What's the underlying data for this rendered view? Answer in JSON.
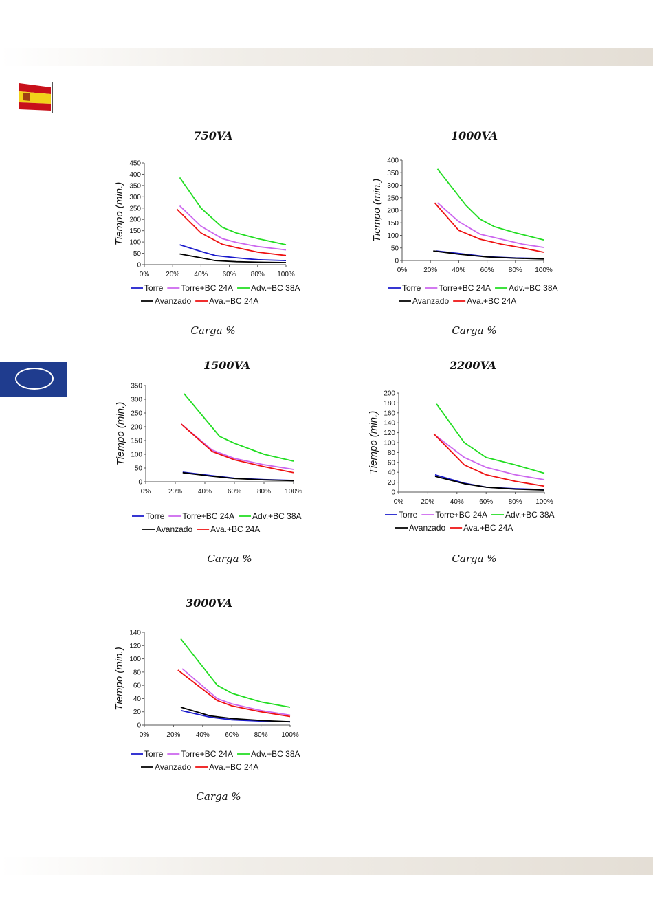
{
  "colors": {
    "Torre": "#1a1acc",
    "Torre+BC 24A": "#cc66ee",
    "Adv.+BC 38A": "#22dd22",
    "Avanzado": "#000000",
    "Ava.+BC 24A": "#ee1111"
  },
  "xlabel": "Carga %",
  "ylabel": "Tiempo (min.)",
  "chart_data": [
    {
      "type": "line",
      "title": "750VA",
      "xlabel": "Carga %",
      "ylabel": "Tiempo (min.)",
      "x_ticks": [
        "0%",
        "20%",
        "40%",
        "60%",
        "80%",
        "100%"
      ],
      "xlim": [
        0,
        100
      ],
      "ylim": [
        0,
        450
      ],
      "y_ticks": [
        0,
        50,
        100,
        150,
        200,
        250,
        300,
        350,
        400,
        450
      ],
      "series": [
        {
          "name": "Torre",
          "x": [
            25,
            40,
            50,
            65,
            80,
            100
          ],
          "values": [
            88,
            58,
            40,
            30,
            22,
            18
          ]
        },
        {
          "name": "Torre+BC 24A",
          "x": [
            25,
            40,
            55,
            65,
            80,
            100
          ],
          "values": [
            260,
            170,
            115,
            98,
            80,
            65
          ]
        },
        {
          "name": "Adv.+BC 38A",
          "x": [
            25,
            40,
            55,
            65,
            80,
            100
          ],
          "values": [
            385,
            250,
            165,
            140,
            115,
            88
          ]
        },
        {
          "name": "Avanzado",
          "x": [
            25,
            40,
            50,
            65,
            80,
            100
          ],
          "values": [
            47,
            30,
            18,
            13,
            11,
            9
          ]
        },
        {
          "name": "Ava.+BC 24A",
          "x": [
            23,
            40,
            55,
            65,
            80,
            100
          ],
          "values": [
            245,
            140,
            90,
            75,
            55,
            40
          ]
        }
      ]
    },
    {
      "type": "line",
      "title": "1000VA",
      "xlabel": "Carga %",
      "ylabel": "Tiempo (min.)",
      "x_ticks": [
        "0%",
        "20%",
        "40%",
        "60%",
        "80%",
        "100%"
      ],
      "xlim": [
        0,
        100
      ],
      "ylim": [
        0,
        400
      ],
      "y_ticks": [
        0,
        50,
        100,
        150,
        200,
        250,
        300,
        350,
        400
      ],
      "series": [
        {
          "name": "Torre",
          "x": [
            24,
            40,
            60,
            80,
            100
          ],
          "values": [
            38,
            28,
            15,
            10,
            8
          ]
        },
        {
          "name": "Torre+BC 24A",
          "x": [
            25,
            40,
            55,
            70,
            85,
            100
          ],
          "values": [
            230,
            155,
            105,
            85,
            65,
            52
          ]
        },
        {
          "name": "Adv.+BC 38A",
          "x": [
            25,
            45,
            55,
            65,
            80,
            100
          ],
          "values": [
            365,
            220,
            165,
            135,
            110,
            82
          ]
        },
        {
          "name": "Avanzado",
          "x": [
            22,
            40,
            60,
            80,
            100
          ],
          "values": [
            38,
            25,
            14,
            9,
            6
          ]
        },
        {
          "name": "Ava.+BC 24A",
          "x": [
            23,
            40,
            55,
            70,
            85,
            100
          ],
          "values": [
            230,
            120,
            85,
            65,
            50,
            33
          ]
        }
      ]
    },
    {
      "type": "line",
      "title": "1500VA",
      "xlabel": "Carga %",
      "ylabel": "Tiempo (min.)",
      "x_ticks": [
        "0%",
        "20%",
        "40%",
        "60%",
        "80%",
        "100%"
      ],
      "xlim": [
        0,
        100
      ],
      "ylim": [
        0,
        350
      ],
      "y_ticks": [
        0,
        50,
        100,
        150,
        200,
        250,
        300,
        350
      ],
      "series": [
        {
          "name": "Torre",
          "x": [
            25,
            45,
            60,
            80,
            100
          ],
          "values": [
            35,
            22,
            13,
            8,
            5
          ]
        },
        {
          "name": "Torre+BC 24A",
          "x": [
            24,
            45,
            60,
            80,
            100
          ],
          "values": [
            210,
            115,
            85,
            62,
            45
          ]
        },
        {
          "name": "Adv.+BC 38A",
          "x": [
            26,
            50,
            60,
            80,
            100
          ],
          "values": [
            320,
            165,
            140,
            100,
            75
          ]
        },
        {
          "name": "Avanzado",
          "x": [
            25,
            45,
            60,
            80,
            100
          ],
          "values": [
            33,
            20,
            12,
            7,
            4
          ]
        },
        {
          "name": "Ava.+BC 24A",
          "x": [
            24,
            45,
            60,
            80,
            100
          ],
          "values": [
            210,
            110,
            80,
            55,
            33
          ]
        }
      ]
    },
    {
      "type": "line",
      "title": "2200VA",
      "xlabel": "Carga %",
      "ylabel": "Tiempo (min.)",
      "x_ticks": [
        "0%",
        "20%",
        "40%",
        "60%",
        "80%",
        "100%"
      ],
      "xlim": [
        0,
        100
      ],
      "ylim": [
        0,
        200
      ],
      "y_ticks": [
        0,
        20,
        40,
        60,
        80,
        100,
        120,
        140,
        160,
        180,
        200
      ],
      "series": [
        {
          "name": "Torre",
          "x": [
            25,
            45,
            60,
            80,
            100
          ],
          "values": [
            35,
            18,
            10,
            7,
            5
          ]
        },
        {
          "name": "Torre+BC 24A",
          "x": [
            25,
            45,
            60,
            80,
            100
          ],
          "values": [
            115,
            70,
            50,
            35,
            25
          ]
        },
        {
          "name": "Adv.+BC 38A",
          "x": [
            26,
            45,
            60,
            80,
            100
          ],
          "values": [
            178,
            100,
            70,
            55,
            38
          ]
        },
        {
          "name": "Avanzado",
          "x": [
            25,
            45,
            60,
            80,
            100
          ],
          "values": [
            32,
            17,
            10,
            6,
            4
          ]
        },
        {
          "name": "Ava.+BC 24A",
          "x": [
            24,
            45,
            60,
            80,
            100
          ],
          "values": [
            118,
            55,
            35,
            22,
            12
          ]
        }
      ]
    },
    {
      "type": "line",
      "title": "3000VA",
      "xlabel": "Carga %",
      "ylabel": "Tiempo (min.)",
      "x_ticks": [
        "0%",
        "20%",
        "40%",
        "60%",
        "80%",
        "100%"
      ],
      "xlim": [
        0,
        100
      ],
      "ylim": [
        0,
        140
      ],
      "y_ticks": [
        0,
        20,
        40,
        60,
        80,
        100,
        120,
        140
      ],
      "series": [
        {
          "name": "Torre",
          "x": [
            25,
            45,
            60,
            80,
            100
          ],
          "values": [
            22,
            12,
            8,
            6,
            5
          ]
        },
        {
          "name": "Torre+BC 24A",
          "x": [
            26,
            50,
            60,
            80,
            100
          ],
          "values": [
            85,
            40,
            32,
            22,
            15
          ]
        },
        {
          "name": "Adv.+BC 38A",
          "x": [
            25,
            50,
            60,
            80,
            100
          ],
          "values": [
            130,
            60,
            48,
            35,
            27
          ]
        },
        {
          "name": "Avanzado",
          "x": [
            25,
            45,
            60,
            80,
            100
          ],
          "values": [
            27,
            14,
            10,
            7,
            5
          ]
        },
        {
          "name": "Ava.+BC 24A",
          "x": [
            23,
            50,
            60,
            80,
            100
          ],
          "values": [
            83,
            37,
            29,
            20,
            13
          ]
        }
      ]
    }
  ]
}
